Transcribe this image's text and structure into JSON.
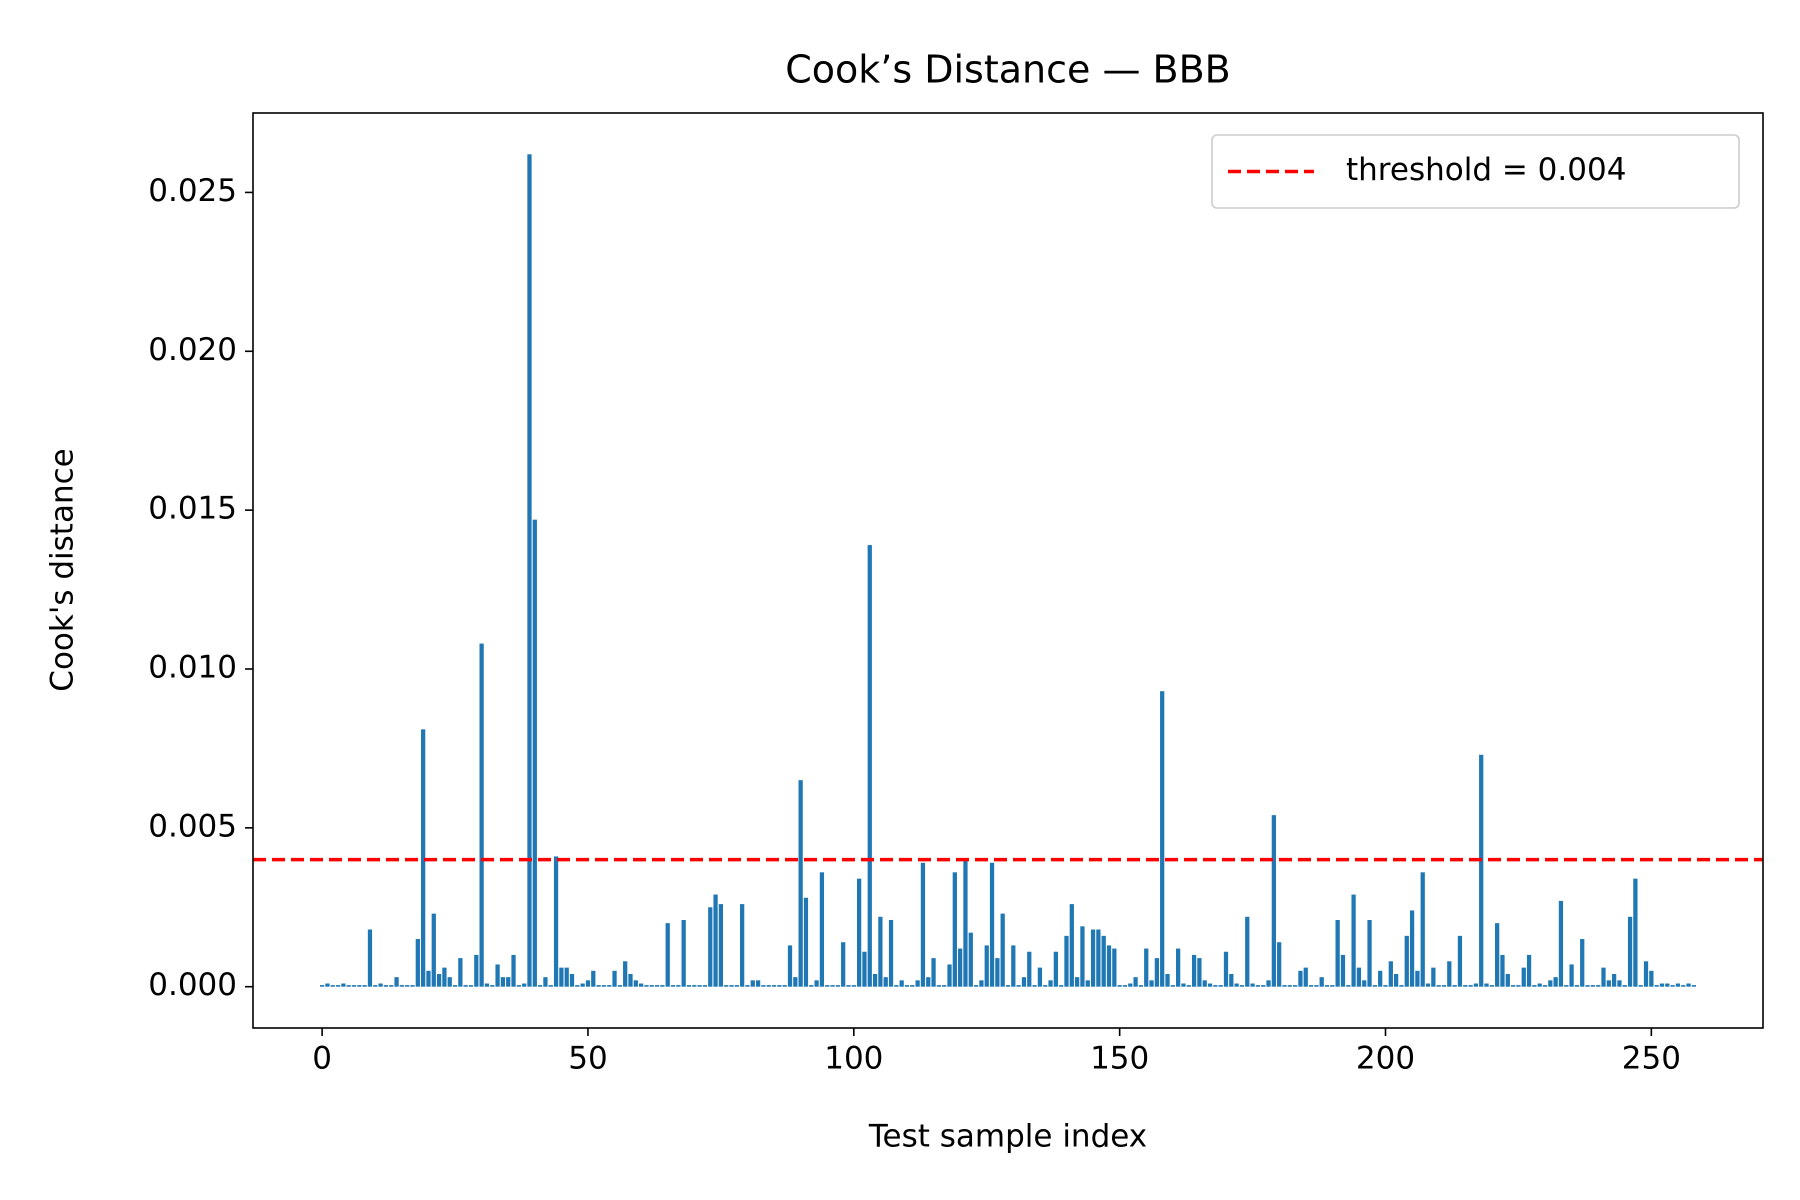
{
  "chart_data": {
    "type": "bar",
    "title": "Cook’s Distance — BBB",
    "xlabel": "Test sample index",
    "ylabel": "Cook's distance",
    "color": "#1f77b4",
    "x": [
      0,
      1,
      2,
      3,
      4,
      5,
      6,
      7,
      8,
      9,
      10,
      11,
      12,
      13,
      14,
      15,
      16,
      17,
      18,
      19,
      20,
      21,
      22,
      23,
      24,
      25,
      26,
      27,
      28,
      29,
      30,
      31,
      32,
      33,
      34,
      35,
      36,
      37,
      38,
      39,
      40,
      41,
      42,
      43,
      44,
      45,
      46,
      47,
      48,
      49,
      50,
      51,
      52,
      53,
      54,
      55,
      56,
      57,
      58,
      59,
      60,
      61,
      62,
      63,
      64,
      65,
      66,
      67,
      68,
      69,
      70,
      71,
      72,
      73,
      74,
      75,
      76,
      77,
      78,
      79,
      80,
      81,
      82,
      83,
      84,
      85,
      86,
      87,
      88,
      89,
      90,
      91,
      92,
      93,
      94,
      95,
      96,
      97,
      98,
      99,
      100,
      101,
      102,
      103,
      104,
      105,
      106,
      107,
      108,
      109,
      110,
      111,
      112,
      113,
      114,
      115,
      116,
      117,
      118,
      119,
      120,
      121,
      122,
      123,
      124,
      125,
      126,
      127,
      128,
      129,
      130,
      131,
      132,
      133,
      134,
      135,
      136,
      137,
      138,
      139,
      140,
      141,
      142,
      143,
      144,
      145,
      146,
      147,
      148,
      149,
      150,
      151,
      152,
      153,
      154,
      155,
      156,
      157,
      158,
      159,
      160,
      161,
      162,
      163,
      164,
      165,
      166,
      167,
      168,
      169,
      170,
      171,
      172,
      173,
      174,
      175,
      176,
      177,
      178,
      179,
      180,
      181,
      182,
      183,
      184,
      185,
      186,
      187,
      188,
      189,
      190,
      191,
      192,
      193,
      194,
      195,
      196,
      197,
      198,
      199,
      200,
      201,
      202,
      203,
      204,
      205,
      206,
      207,
      208,
      209,
      210,
      211,
      212,
      213,
      214,
      215,
      216,
      217,
      218,
      219,
      220,
      221,
      222,
      223,
      224,
      225,
      226,
      227,
      228,
      229,
      230,
      231,
      232,
      233,
      234,
      235,
      236,
      237,
      238,
      239,
      240,
      241,
      242,
      243,
      244,
      245,
      246,
      247,
      248,
      249,
      250,
      251,
      252,
      253,
      254,
      255,
      256,
      257,
      258
    ],
    "values": [
      5e-05,
      0.0001,
      5e-05,
      5e-05,
      0.0001,
      5e-05,
      5e-05,
      5e-05,
      5e-05,
      0.0018,
      5e-05,
      0.0001,
      5e-05,
      5e-05,
      0.0003,
      5e-05,
      5e-05,
      5e-05,
      0.0015,
      0.0081,
      0.0005,
      0.0023,
      0.0004,
      0.0006,
      0.0003,
      5e-05,
      0.0009,
      5e-05,
      5e-05,
      0.001,
      0.0108,
      0.0001,
      5e-05,
      0.0007,
      0.0003,
      0.0003,
      0.001,
      5e-05,
      0.0001,
      0.0262,
      0.0147,
      5e-05,
      0.0003,
      5e-05,
      0.0041,
      0.0006,
      0.0006,
      0.0004,
      5e-05,
      0.0001,
      0.0002,
      0.0005,
      5e-05,
      5e-05,
      5e-05,
      0.0005,
      5e-05,
      0.0008,
      0.0004,
      0.0002,
      0.0001,
      5e-05,
      5e-05,
      5e-05,
      5e-05,
      0.002,
      5e-05,
      5e-05,
      0.0021,
      5e-05,
      5e-05,
      5e-05,
      5e-05,
      0.0025,
      0.0029,
      0.0026,
      5e-05,
      5e-05,
      5e-05,
      0.0026,
      5e-05,
      0.0002,
      0.0002,
      5e-05,
      5e-05,
      5e-05,
      5e-05,
      5e-05,
      0.0013,
      0.0003,
      0.0065,
      0.0028,
      5e-05,
      0.0002,
      0.0036,
      5e-05,
      5e-05,
      5e-05,
      0.0014,
      5e-05,
      5e-05,
      0.0034,
      0.0011,
      0.0139,
      0.0004,
      0.0022,
      0.0003,
      0.0021,
      5e-05,
      0.0002,
      5e-05,
      5e-05,
      0.0002,
      0.0039,
      0.0003,
      0.0009,
      5e-05,
      5e-05,
      0.0007,
      0.0036,
      0.0012,
      0.004,
      0.0017,
      5e-05,
      0.0002,
      0.0013,
      0.0039,
      0.0009,
      0.0023,
      5e-05,
      0.0013,
      5e-05,
      0.0003,
      0.0011,
      5e-05,
      0.0006,
      5e-05,
      0.0002,
      0.0011,
      5e-05,
      0.0016,
      0.0026,
      0.0003,
      0.0019,
      0.0002,
      0.0018,
      0.0018,
      0.0016,
      0.0013,
      0.0012,
      5e-05,
      5e-05,
      0.0001,
      0.0003,
      5e-05,
      0.0012,
      0.0002,
      0.0009,
      0.0093,
      0.0004,
      5e-05,
      0.0012,
      0.0001,
      5e-05,
      0.001,
      0.0009,
      0.0002,
      0.0001,
      5e-05,
      5e-05,
      0.0011,
      0.0004,
      0.0001,
      5e-05,
      0.0022,
      0.0001,
      5e-05,
      5e-05,
      0.0002,
      0.0054,
      0.0014,
      5e-05,
      5e-05,
      5e-05,
      0.0005,
      0.0006,
      5e-05,
      5e-05,
      0.0003,
      5e-05,
      5e-05,
      0.0021,
      0.001,
      5e-05,
      0.0029,
      0.0006,
      0.0002,
      0.0021,
      5e-05,
      0.0005,
      5e-05,
      0.0008,
      0.0004,
      5e-05,
      0.0016,
      0.0024,
      0.0005,
      0.0036,
      0.0001,
      0.0006,
      5e-05,
      5e-05,
      0.0008,
      5e-05,
      0.0016,
      5e-05,
      5e-05,
      0.0001,
      0.0073,
      0.0001,
      5e-05,
      0.002,
      0.001,
      0.0004,
      5e-05,
      5e-05,
      0.0006,
      0.001,
      5e-05,
      0.0001,
      5e-05,
      0.0002,
      0.0003,
      0.0027,
      5e-05,
      0.0007,
      5e-05,
      0.0015,
      5e-05,
      5e-05,
      5e-05,
      0.0006,
      0.0002,
      0.0004,
      0.0002,
      5e-05,
      0.0022,
      0.0034,
      5e-05,
      0.0008,
      0.0005,
      5e-05,
      0.0001,
      0.0001,
      5e-05,
      0.0001,
      5e-05,
      0.0001,
      5e-05
    ],
    "threshold": {
      "value": 0.004,
      "label": "threshold = 0.004",
      "color": "#ff0000"
    },
    "legend": "upper right",
    "xlim": [
      -13,
      271
    ],
    "xticks": [
      0,
      50,
      100,
      150,
      200,
      250
    ],
    "ylim": [
      -0.0013,
      0.0275
    ],
    "yticks": [
      {
        "value": 0,
        "label": "0.000"
      },
      {
        "value": 0.005,
        "label": "0.005"
      },
      {
        "value": 0.01,
        "label": "0.010"
      },
      {
        "value": 0.015,
        "label": "0.015"
      },
      {
        "value": 0.02,
        "label": "0.020"
      },
      {
        "value": 0.025,
        "label": "0.025"
      }
    ]
  }
}
